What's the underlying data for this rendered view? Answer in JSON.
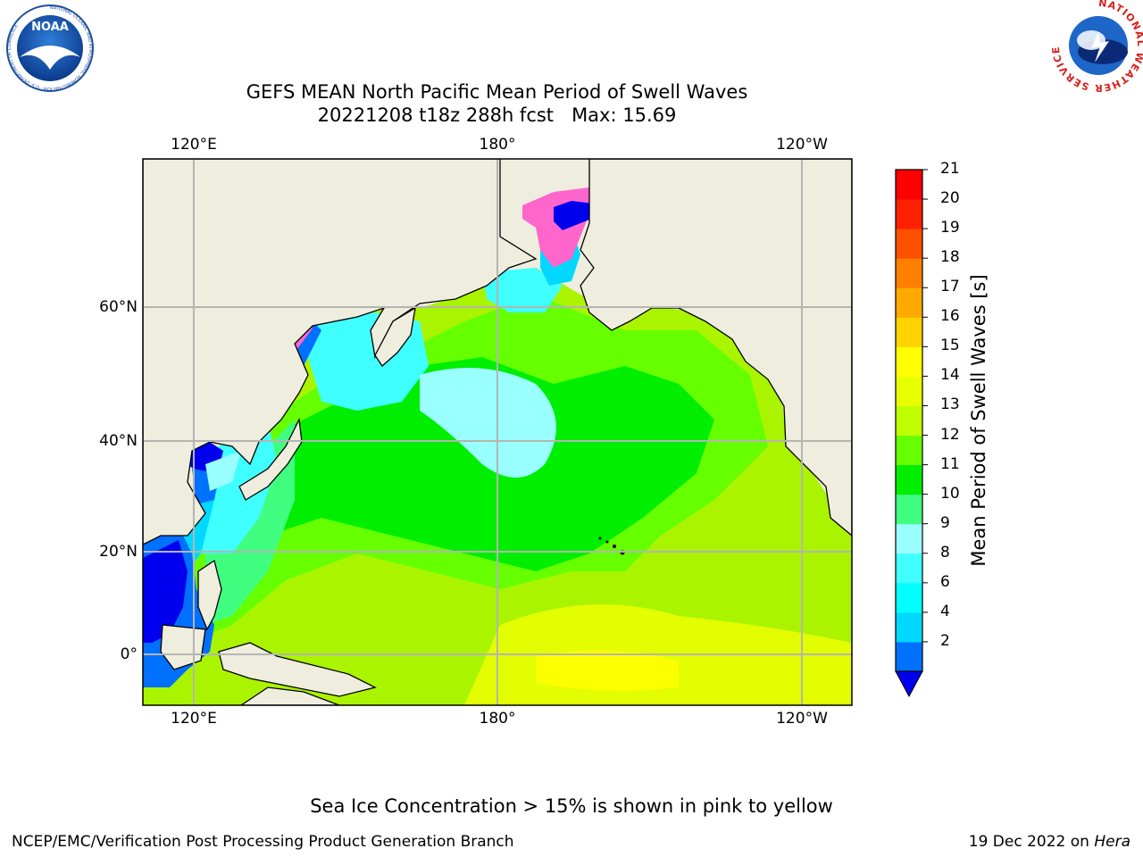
{
  "header": {
    "title_line1": "GEFS MEAN North Pacific Mean Period of Swell Waves",
    "title_line2": "20221208 t18z 288h fcst   Max: 15.69"
  },
  "logos": {
    "left": "NOAA",
    "left_ring": "NATIONAL OCEANIC AND ATMOSPHERIC ADMINISTRATION · U.S. DEPARTMENT OF COMMERCE",
    "right_ring": "NATIONAL WEATHER SERVICE"
  },
  "map": {
    "lon_labels_top": [
      "120°E",
      "180°",
      "120°W"
    ],
    "lon_labels_bottom": [
      "120°E",
      "180°",
      "120°W"
    ],
    "lat_labels": [
      "60°N",
      "40°N",
      "20°N",
      "0°"
    ],
    "colors": {
      "land": "#efeddd",
      "grid": "#b4b4b4"
    }
  },
  "colorbar": {
    "label": "Mean Period of Swell Waves [s]",
    "ticks": [
      "21",
      "20",
      "19",
      "18",
      "17",
      "16",
      "15",
      "14",
      "13",
      "12",
      "11",
      "10",
      "9",
      "8",
      "6",
      "4",
      "2"
    ],
    "colors": [
      "#0000ee",
      "#0070ff",
      "#00d8ff",
      "#00ffff",
      "#40ffff",
      "#99ffff",
      "#40ff80",
      "#00ee00",
      "#66ff00",
      "#c0ff00",
      "#e8ff00",
      "#ffff00",
      "#ffd200",
      "#ffaa00",
      "#ff8000",
      "#ff5000",
      "#ff2000",
      "#ff0000"
    ]
  },
  "footer": {
    "note": "Sea Ice Concentration > 15% is shown in pink to yellow",
    "left": "NCEP/EMC/Verification Post Processing Product Generation Branch",
    "right_prefix": "19 Dec 2022 on ",
    "right_host": "Hera"
  }
}
